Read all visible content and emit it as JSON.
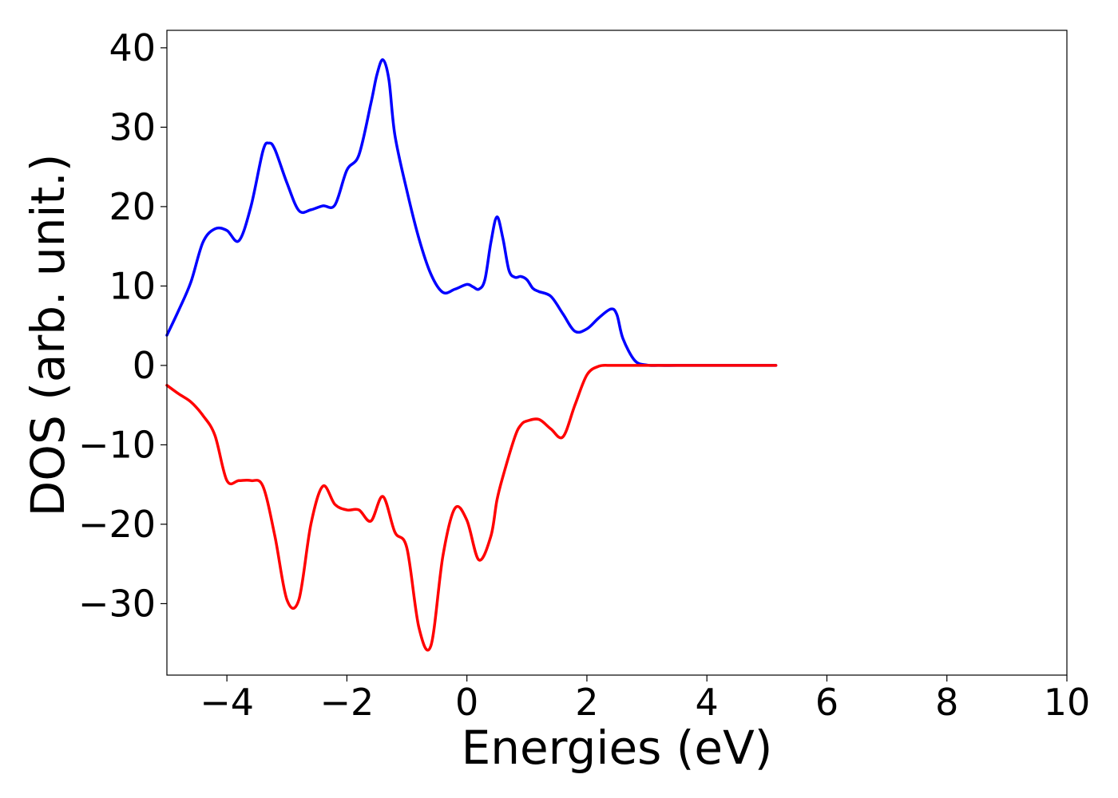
{
  "chart_data": {
    "type": "line",
    "title": "",
    "xlabel": "Energies (eV)",
    "ylabel": "DOS (arb. unit.)",
    "xlim": [
      -5,
      10
    ],
    "ylim": [
      -39,
      42.2
    ],
    "x_ticks": [
      -4,
      -2,
      0,
      2,
      4,
      6,
      8,
      10
    ],
    "x_tick_labels": [
      "−4",
      "−2",
      "0",
      "2",
      "4",
      "6",
      "8",
      "10"
    ],
    "y_ticks": [
      -30,
      -20,
      -10,
      0,
      10,
      20,
      30,
      40
    ],
    "y_tick_labels": [
      "−30",
      "−20",
      "−10",
      "0",
      "10",
      "20",
      "30",
      "40"
    ],
    "grid": false,
    "legend": "none",
    "series": [
      {
        "color": "#0000ff",
        "x": [
          -5.0,
          -4.8,
          -4.6,
          -4.4,
          -4.2,
          -4.0,
          -3.8,
          -3.6,
          -3.4,
          -3.3,
          -3.2,
          -3.0,
          -2.8,
          -2.6,
          -2.4,
          -2.2,
          -2.0,
          -1.8,
          -1.6,
          -1.5,
          -1.4,
          -1.3,
          -1.2,
          -1.0,
          -0.8,
          -0.6,
          -0.4,
          -0.2,
          0.0,
          0.1,
          0.2,
          0.3,
          0.4,
          0.5,
          0.6,
          0.7,
          0.8,
          0.9,
          1.0,
          1.1,
          1.2,
          1.4,
          1.6,
          1.8,
          2.0,
          2.2,
          2.4,
          2.5,
          2.6,
          2.8,
          3.0,
          3.2,
          3.5,
          4.0,
          4.5,
          5.0,
          5.15
        ],
        "y": [
          3.8,
          7.0,
          10.5,
          15.5,
          17.2,
          17.0,
          15.7,
          20.0,
          27.0,
          28.0,
          27.2,
          23.0,
          19.5,
          19.6,
          20.1,
          20.2,
          24.6,
          26.5,
          33.0,
          36.6,
          38.5,
          36.0,
          29.0,
          22.0,
          16.0,
          11.5,
          9.2,
          9.6,
          10.2,
          9.9,
          9.6,
          10.8,
          15.5,
          18.7,
          16.0,
          12.0,
          11.1,
          11.2,
          10.8,
          9.7,
          9.3,
          8.7,
          6.5,
          4.3,
          4.6,
          6.0,
          7.1,
          6.4,
          3.4,
          0.6,
          0.05,
          0.0,
          0.0,
          0.0,
          0.0,
          0.0,
          0.0
        ]
      },
      {
        "color": "#ff0000",
        "x": [
          -5.0,
          -4.8,
          -4.6,
          -4.4,
          -4.2,
          -4.0,
          -3.8,
          -3.6,
          -3.4,
          -3.2,
          -3.0,
          -2.8,
          -2.6,
          -2.4,
          -2.2,
          -2.0,
          -1.8,
          -1.6,
          -1.4,
          -1.2,
          -1.0,
          -0.8,
          -0.6,
          -0.4,
          -0.2,
          0.0,
          0.2,
          0.4,
          0.5,
          0.6,
          0.8,
          0.9,
          1.0,
          1.2,
          1.4,
          1.6,
          1.8,
          2.0,
          2.2,
          2.4,
          2.6,
          2.8,
          3.0,
          3.2,
          3.5,
          4.0,
          4.5,
          5.0,
          5.15
        ],
        "y": [
          -2.5,
          -3.6,
          -4.6,
          -6.3,
          -8.8,
          -14.5,
          -14.5,
          -14.5,
          -15.2,
          -21.5,
          -29.5,
          -29.5,
          -20.0,
          -15.2,
          -17.5,
          -18.2,
          -18.2,
          -19.6,
          -16.5,
          -21.0,
          -23.0,
          -33.0,
          -35.3,
          -24.0,
          -18.0,
          -19.5,
          -24.5,
          -21.5,
          -17.0,
          -14.0,
          -9.0,
          -7.5,
          -7.0,
          -6.8,
          -8.0,
          -9.0,
          -5.0,
          -1.2,
          -0.1,
          0.0,
          0.0,
          0.0,
          0.0,
          0.0,
          0.0,
          0.0,
          0.0,
          0.0,
          0.0
        ]
      }
    ]
  }
}
